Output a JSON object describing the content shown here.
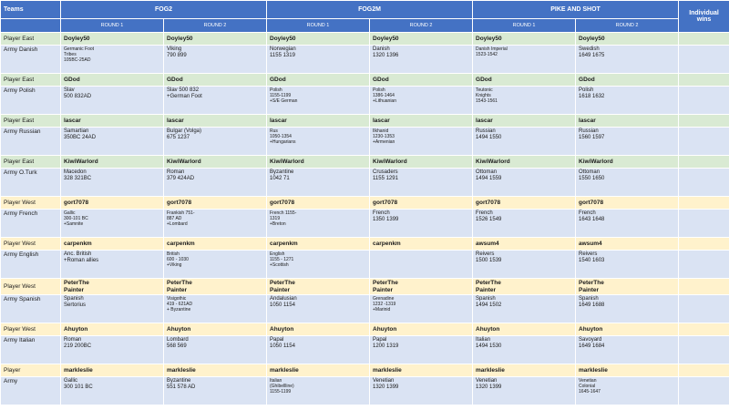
{
  "header": {
    "teams": "Teams",
    "groups": [
      "FOG2",
      "FOG2M",
      "PIKE AND SHOT"
    ],
    "individual_wins": "Individual wins",
    "rounds": [
      "ROUND 1",
      "ROUND 2",
      "ROUND 1",
      "ROUND 2",
      "ROUND 1",
      "ROUND 2"
    ]
  },
  "rows": [
    {
      "type": "player",
      "side": "east",
      "label": "Player East",
      "cells": [
        "Doyley50",
        "Doyley50",
        "Doyley50",
        "Doyley50",
        "Doyley50",
        "Doyley50"
      ]
    },
    {
      "type": "army",
      "label": "Army Danish",
      "cells": [
        {
          "text": "Germanic Foot\nTribes\n105BC-25AD",
          "small": true
        },
        {
          "text": "Viking\n790 899",
          "small": false
        },
        {
          "text": "Norwegian\n1155 1319",
          "small": false
        },
        {
          "text": "Danish\n1320 1396",
          "small": false
        },
        {
          "text": "Danish Imperial\n1523-1542",
          "small": true
        },
        {
          "text": "Swedish\n1649 1675",
          "small": false
        }
      ]
    },
    {
      "type": "player",
      "side": "east",
      "label": "Player East",
      "cells": [
        "GDod",
        "GDod",
        "GDod",
        "GDod",
        "GDod",
        "GDod"
      ]
    },
    {
      "type": "army",
      "label": "Army Polish",
      "cells": [
        {
          "text": "Slav\n500 832AD",
          "small": false
        },
        {
          "text": "Slav 500 832\n+German Foot",
          "small": false
        },
        {
          "text": "Polish\n1155-1199\n+S/E German",
          "small": true
        },
        {
          "text": "Polish\n1386-1464\n+Lithuanian",
          "small": true
        },
        {
          "text": "Teutonic\nKnights\n1543-1561",
          "small": true
        },
        {
          "text": "Polish\n1618 1632",
          "small": false
        }
      ]
    },
    {
      "type": "player",
      "side": "east",
      "label": "Player East",
      "cells": [
        "lascar",
        "lascar",
        "lascar",
        "lascar",
        "lascar",
        "lascar"
      ]
    },
    {
      "type": "army",
      "label": "Army Russian",
      "cells": [
        {
          "text": "Samartian\n350BC 24AD",
          "small": false
        },
        {
          "text": "Bulgar (Volga)\n675 1237",
          "small": false
        },
        {
          "text": "Rus\n1050-1354\n+Hungarians",
          "small": true
        },
        {
          "text": "Ilkhanid\n1230-1353\n+Armenian",
          "small": true
        },
        {
          "text": "Russian\n1494 1550",
          "small": false
        },
        {
          "text": "Russian\n1560 1597",
          "small": false
        }
      ]
    },
    {
      "type": "player",
      "side": "east",
      "label": "Player East",
      "cells": [
        "KiwiWarlord",
        "KiwiWarlord",
        "KiwiWarlord",
        "KiwiWarlord",
        "KiwiWarlord",
        "KiwiWarlord"
      ]
    },
    {
      "type": "army",
      "label": "Army O.Turk",
      "cells": [
        {
          "text": "Macedon\n328 321BC",
          "small": false
        },
        {
          "text": "Roman\n379 424AD",
          "small": false
        },
        {
          "text": "Byzantine\n1042 71",
          "small": false
        },
        {
          "text": "Crusaders\n1155 1291",
          "small": false
        },
        {
          "text": "Ottoman\n1494 1559",
          "small": false
        },
        {
          "text": "Ottoman\n1550 1650",
          "small": false
        }
      ]
    },
    {
      "type": "player",
      "side": "west",
      "label": "Player West",
      "cells": [
        "gort7078",
        "gort7078",
        "gort7078",
        "gort7078",
        "gort7078",
        "gort7078"
      ]
    },
    {
      "type": "army",
      "label": "Army French",
      "cells": [
        {
          "text": "Gallic\n300-101 BC\n+Samnite",
          "small": true
        },
        {
          "text": "Frankish 751-\n887 AD\n+Lombard",
          "small": true
        },
        {
          "text": "French 1155-\n1319\n+Breton",
          "small": true
        },
        {
          "text": "French\n1350 1399",
          "small": false
        },
        {
          "text": " French\n1526 1549",
          "small": false
        },
        {
          "text": "French\n1643 1648",
          "small": false
        }
      ]
    },
    {
      "type": "player",
      "side": "west",
      "label": "Player West",
      "cells": [
        "carpenkm",
        "carpenkm",
        "carpenkm",
        "carpenkm",
        "awsum4",
        "awsum4"
      ]
    },
    {
      "type": "army",
      "label": "Army English",
      "cells": [
        {
          "text": "Anc. British\n+Roman allies",
          "small": false
        },
        {
          "text": "British\n600 - 1030\n+Viking",
          "small": true
        },
        {
          "text": "English\n1155 - 1271\n+Scottish",
          "small": true
        },
        {
          "text": "",
          "small": false
        },
        {
          "text": "Reivers\n1500 1539",
          "small": false
        },
        {
          "text": "Reivers\n1540 1603",
          "small": false
        }
      ]
    },
    {
      "type": "player",
      "side": "west",
      "label": "Player West",
      "cells": [
        "PeterThe\nPainter",
        "PeterThe\nPainter",
        "PeterThe\nPainter",
        "PeterThe\nPainter",
        "PeterThe\nPainter",
        "PeterThe\nPainter"
      ]
    },
    {
      "type": "army",
      "label": "Army Spanish",
      "cells": [
        {
          "text": "Spanish\nSertorius",
          "small": false
        },
        {
          "text": "Visigothic\n419 - 621AD\n+ Byzantine",
          "small": true
        },
        {
          "text": "Andalusian\n1050 1154",
          "small": false
        },
        {
          "text": "Grenadine\n1232 -1319\n+Marinid",
          "small": true
        },
        {
          "text": "Spanish\n1494 1502",
          "small": false
        },
        {
          "text": "Spanish\n1649 1688",
          "small": false
        }
      ]
    },
    {
      "type": "player",
      "side": "west",
      "label": "Player West",
      "cells": [
        "Ahuyton",
        "Ahuyton",
        "Ahuyton",
        "Ahuyton",
        "Ahuyton",
        "Ahuyton"
      ]
    },
    {
      "type": "army",
      "label": "Army Italian",
      "cells": [
        {
          "text": "Roman\n219 200BC",
          "small": false
        },
        {
          "text": "Lombard\n568 569",
          "small": false
        },
        {
          "text": "Papal\n1050 1154",
          "small": false
        },
        {
          "text": "Papal\n1200 1319",
          "small": false
        },
        {
          "text": "Italian\n1494 1530",
          "small": false
        },
        {
          "text": "Savoyard\n1649 1684",
          "small": false
        }
      ]
    },
    {
      "type": "player",
      "side": "west",
      "label": "Player",
      "cells": [
        "markleslie",
        "markleslie",
        "markleslie",
        "markleslie",
        "markleslie",
        "markleslie"
      ]
    },
    {
      "type": "army",
      "label": "Army",
      "cells": [
        {
          "text": "Gallic\n300 101 BC",
          "small": false
        },
        {
          "text": " Byzantine\n551 578 AD",
          "small": false
        },
        {
          "text": "Italian\n(Ghibellline)\n1155-1199",
          "small": true
        },
        {
          "text": "Venetian\n1320 1399",
          "small": false
        },
        {
          "text": "Venetian\n1320 1399",
          "small": false
        },
        {
          "text": "Venetian\nColonial\n1645-1647",
          "small": true
        }
      ]
    }
  ],
  "colors": {
    "header": "#4472c4",
    "player_east": "#d9ead3",
    "player_west": "#fff2cc",
    "army": "#dae3f3"
  }
}
